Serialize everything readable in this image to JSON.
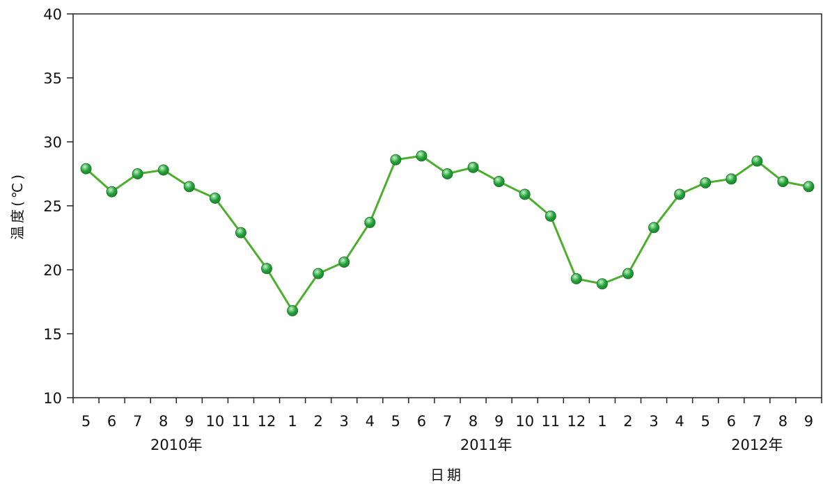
{
  "chart_data": {
    "type": "line",
    "xlabel": "日期",
    "ylabel": "温度(℃)",
    "ylim": [
      10,
      40
    ],
    "yticks": [
      10,
      15,
      20,
      25,
      30,
      35,
      40
    ],
    "grid": false,
    "legend": "none",
    "categories": [
      "5",
      "6",
      "7",
      "8",
      "9",
      "10",
      "11",
      "12",
      "1",
      "2",
      "3",
      "4",
      "5",
      "6",
      "7",
      "8",
      "9",
      "10",
      "11",
      "12",
      "1",
      "2",
      "3",
      "4",
      "5",
      "6",
      "7",
      "8",
      "9"
    ],
    "year_labels": [
      {
        "label": "2010年",
        "center_index": 3.5
      },
      {
        "label": "2011年",
        "center_index": 15.5
      },
      {
        "label": "2012年",
        "center_index": 26
      }
    ],
    "series": [
      {
        "values": [
          27.9,
          26.1,
          27.5,
          27.8,
          26.5,
          25.6,
          22.9,
          20.1,
          16.8,
          19.7,
          20.6,
          23.7,
          28.6,
          28.9,
          27.5,
          28.0,
          26.9,
          25.9,
          24.2,
          19.3,
          18.9,
          19.7,
          23.3,
          25.9,
          26.8,
          27.1,
          28.5,
          26.9,
          26.5
        ]
      }
    ],
    "colors": {
      "line": "#4caf2c",
      "marker_fill": "#22a33a",
      "marker_highlight": "#c9f2c9",
      "marker_stroke": "#1e7a2a",
      "axis": "#222222"
    }
  }
}
